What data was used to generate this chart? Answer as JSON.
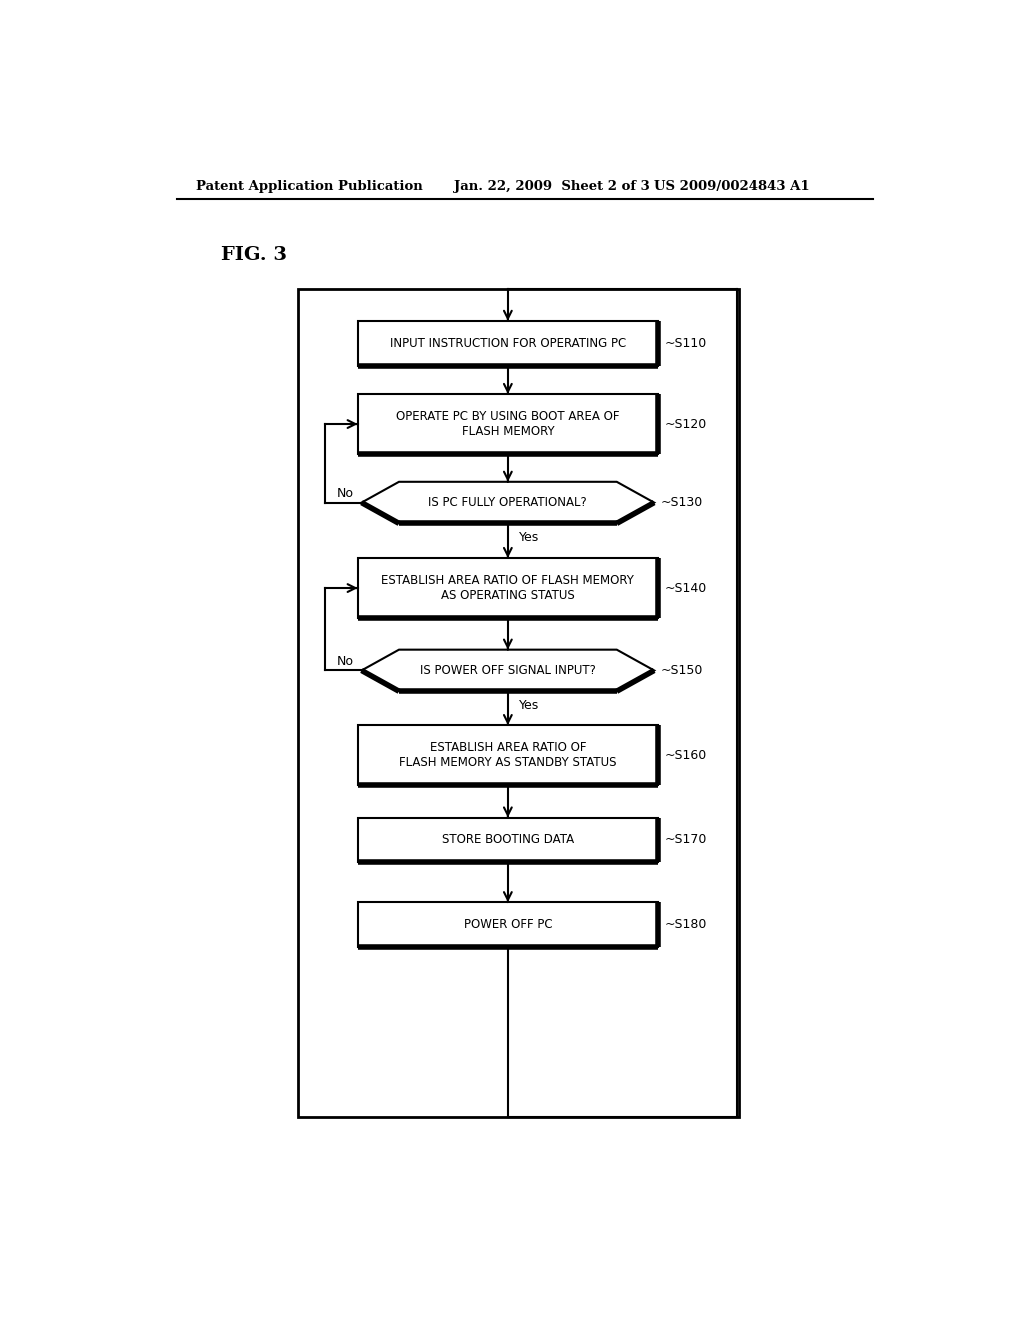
{
  "bg_color": "#ffffff",
  "header_left": "Patent Application Publication",
  "header_mid": "Jan. 22, 2009  Sheet 2 of 3",
  "header_right": "US 2009/0024843 A1",
  "fig_label": "FIG. 3",
  "steps": [
    {
      "id": "S110",
      "label": "INPUT INSTRUCTION FOR OPERATING PC",
      "type": "rect"
    },
    {
      "id": "S120",
      "label": "OPERATE PC BY USING BOOT AREA OF\nFLASH MEMORY",
      "type": "rect"
    },
    {
      "id": "S130",
      "label": "IS PC FULLY OPERATIONAL?",
      "type": "diamond"
    },
    {
      "id": "S140",
      "label": "ESTABLISH AREA RATIO OF FLASH MEMORY\nAS OPERATING STATUS",
      "type": "rect"
    },
    {
      "id": "S150",
      "label": "IS POWER OFF SIGNAL INPUT?",
      "type": "diamond"
    },
    {
      "id": "S160",
      "label": "ESTABLISH AREA RATIO OF\nFLASH MEMORY AS STANDBY STATUS",
      "type": "rect"
    },
    {
      "id": "S170",
      "label": "STORE BOOTING DATA",
      "type": "rect"
    },
    {
      "id": "S180",
      "label": "POWER OFF PC",
      "type": "rect"
    }
  ]
}
